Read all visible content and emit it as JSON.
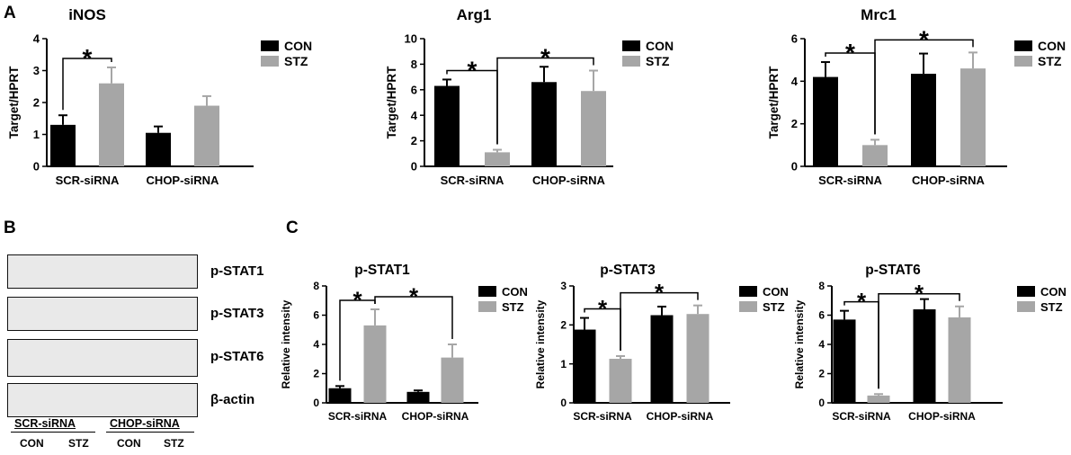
{
  "panels": {
    "A": "A",
    "B": "B",
    "C": "C"
  },
  "colors": {
    "con": "#000000",
    "stz": "#a6a6a6",
    "axis": "#000000",
    "blot_bg": "#e9e9e9",
    "band": "#1c1c1c"
  },
  "blot": {
    "labels": [
      "p-STAT1",
      "p-STAT3",
      "p-STAT6",
      "β-actin"
    ],
    "groups": [
      "SCR-siRNA",
      "CHOP-siRNA"
    ],
    "lanes": [
      "CON",
      "STZ",
      "CON",
      "STZ"
    ]
  },
  "chart_data": [
    {
      "type": "bar",
      "title": "iNOS",
      "ylabel": "Target/HPRT",
      "ylim": [
        0,
        4
      ],
      "yticks": [
        "0",
        "1",
        "2",
        "3",
        "4"
      ],
      "categories": [
        "SCR-siRNA",
        "CHOP-siRNA"
      ],
      "series": [
        {
          "name": "CON",
          "values": [
            1.3,
            1.05
          ],
          "errors": [
            0.3,
            0.2
          ]
        },
        {
          "name": "STZ",
          "values": [
            2.6,
            1.9
          ],
          "errors": [
            0.5,
            0.3
          ]
        }
      ],
      "legend": "top-right",
      "annotations": [
        {
          "text": "*",
          "from": [
            0,
            0
          ],
          "to": [
            0,
            1
          ]
        }
      ]
    },
    {
      "type": "bar",
      "title": "Arg1",
      "ylabel": "Target/HPRT",
      "ylim": [
        0,
        10
      ],
      "yticks": [
        "0",
        "2",
        "4",
        "6",
        "8",
        "10"
      ],
      "categories": [
        "SCR-siRNA",
        "CHOP-siRNA"
      ],
      "series": [
        {
          "name": "CON",
          "values": [
            6.3,
            6.6
          ],
          "errors": [
            0.5,
            1.2
          ]
        },
        {
          "name": "STZ",
          "values": [
            1.1,
            5.9
          ],
          "errors": [
            0.2,
            1.6
          ]
        }
      ],
      "legend": "top-right",
      "annotations": [
        {
          "text": "*",
          "from": [
            0,
            0
          ],
          "to": [
            0,
            1
          ]
        },
        {
          "text": "*",
          "from": [
            0,
            1
          ],
          "to": [
            1,
            1
          ]
        }
      ]
    },
    {
      "type": "bar",
      "title": "Mrc1",
      "ylabel": "Target/HPRT",
      "ylim": [
        0,
        6
      ],
      "yticks": [
        "0",
        "2",
        "4",
        "6"
      ],
      "categories": [
        "SCR-siRNA",
        "CHOP-siRNA"
      ],
      "series": [
        {
          "name": "CON",
          "values": [
            4.2,
            4.35
          ],
          "errors": [
            0.7,
            0.95
          ]
        },
        {
          "name": "STZ",
          "values": [
            1.0,
            4.6
          ],
          "errors": [
            0.25,
            0.75
          ]
        }
      ],
      "legend": "top-right",
      "annotations": [
        {
          "text": "*",
          "from": [
            0,
            0
          ],
          "to": [
            0,
            1
          ]
        },
        {
          "text": "*",
          "from": [
            0,
            1
          ],
          "to": [
            1,
            1
          ]
        }
      ]
    },
    {
      "type": "bar",
      "title": "p-STAT1",
      "ylabel": "Relative intensity",
      "ylim": [
        0,
        8
      ],
      "yticks": [
        "0",
        "2",
        "4",
        "6",
        "8"
      ],
      "categories": [
        "SCR-siRNA",
        "CHOP-siRNA"
      ],
      "series": [
        {
          "name": "CON",
          "values": [
            1.0,
            0.75
          ],
          "errors": [
            0.15,
            0.1
          ]
        },
        {
          "name": "STZ",
          "values": [
            5.3,
            3.1
          ],
          "errors": [
            1.1,
            0.9
          ]
        }
      ],
      "legend": "top-right",
      "annotations": [
        {
          "text": "*",
          "from": [
            0,
            0
          ],
          "to": [
            0,
            1
          ]
        },
        {
          "text": "*",
          "from": [
            0,
            1
          ],
          "to": [
            1,
            1
          ]
        }
      ]
    },
    {
      "type": "bar",
      "title": "p-STAT3",
      "ylabel": "Relative intensity",
      "ylim": [
        0,
        3
      ],
      "yticks": [
        "0",
        "1",
        "2",
        "3"
      ],
      "categories": [
        "SCR-siRNA",
        "CHOP-siRNA"
      ],
      "series": [
        {
          "name": "CON",
          "values": [
            1.88,
            2.25
          ],
          "errors": [
            0.3,
            0.22
          ]
        },
        {
          "name": "STZ",
          "values": [
            1.13,
            2.28
          ],
          "errors": [
            0.07,
            0.22
          ]
        }
      ],
      "legend": "top-right",
      "annotations": [
        {
          "text": "*",
          "from": [
            0,
            0
          ],
          "to": [
            0,
            1
          ]
        },
        {
          "text": "*",
          "from": [
            0,
            1
          ],
          "to": [
            1,
            1
          ]
        }
      ]
    },
    {
      "type": "bar",
      "title": "p-STAT6",
      "ylabel": "Relative intensity",
      "ylim": [
        0,
        8
      ],
      "yticks": [
        "0",
        "2",
        "4",
        "6",
        "8"
      ],
      "categories": [
        "SCR-siRNA",
        "CHOP-siRNA"
      ],
      "series": [
        {
          "name": "CON",
          "values": [
            5.7,
            6.4
          ],
          "errors": [
            0.6,
            0.7
          ]
        },
        {
          "name": "STZ",
          "values": [
            0.5,
            5.85
          ],
          "errors": [
            0.1,
            0.75
          ]
        }
      ],
      "legend": "top-right",
      "annotations": [
        {
          "text": "*",
          "from": [
            0,
            0
          ],
          "to": [
            0,
            1
          ]
        },
        {
          "text": "*",
          "from": [
            0,
            1
          ],
          "to": [
            1,
            1
          ]
        }
      ]
    }
  ]
}
